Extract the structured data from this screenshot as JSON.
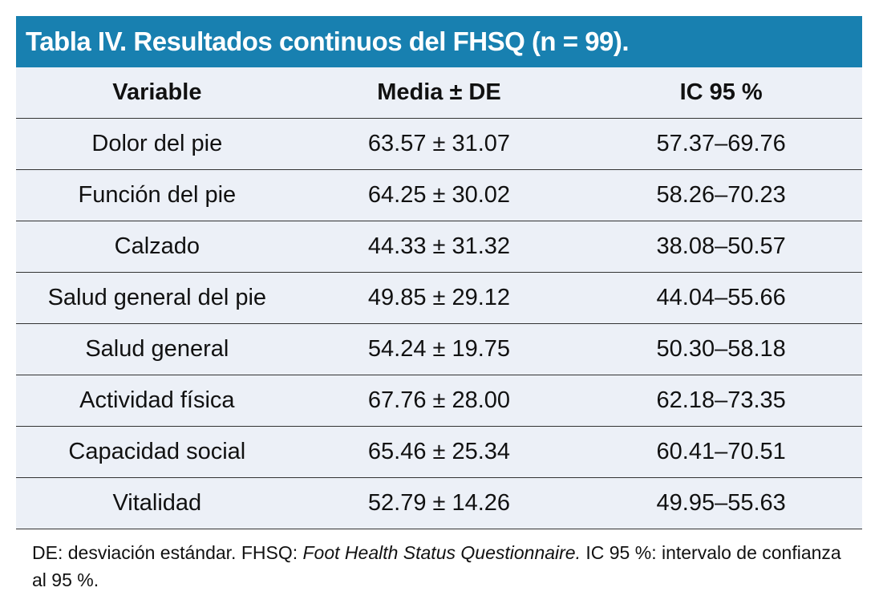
{
  "title": "Tabla IV. Resultados continuos del FHSQ (n = 99).",
  "columns": [
    "Variable",
    "Media ± DE",
    "IC 95 %"
  ],
  "rows": [
    [
      "Dolor del pie",
      "63.57 ± 31.07",
      "57.37–69.76"
    ],
    [
      "Función del pie",
      "64.25 ± 30.02",
      "58.26–70.23"
    ],
    [
      "Calzado",
      "44.33 ± 31.32",
      "38.08–50.57"
    ],
    [
      "Salud general del pie",
      "49.85 ± 29.12",
      "44.04–55.66"
    ],
    [
      "Salud general",
      "54.24 ± 19.75",
      "50.30–58.18"
    ],
    [
      "Actividad física",
      "67.76 ± 28.00",
      "62.18–73.35"
    ],
    [
      "Capacidad social",
      "65.46 ± 25.34",
      "60.41–70.51"
    ],
    [
      "Vitalidad",
      "52.79 ± 14.26",
      "49.95–55.63"
    ]
  ],
  "footnote": {
    "part1": "DE: desviación estándar. FHSQ: ",
    "italic": "Foot Health Status Questionnaire.",
    "part2": " IC 95 %: intervalo de confianza al 95 %."
  },
  "colors": {
    "header": "#1880B0",
    "table_bg": "#ECF0F7"
  }
}
